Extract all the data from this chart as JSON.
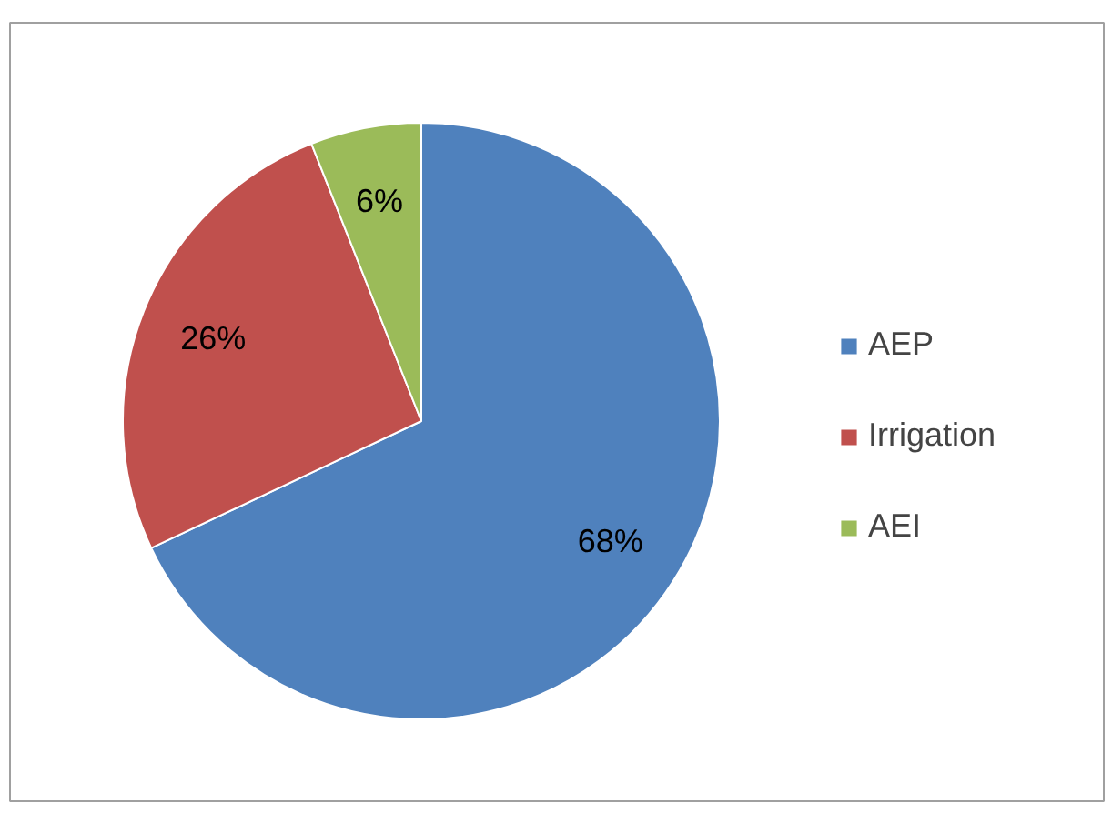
{
  "chart_data": {
    "type": "pie",
    "categories": [
      "AEP",
      "Irrigation",
      "AEI"
    ],
    "values": [
      68,
      26,
      6
    ],
    "value_labels": [
      "68%",
      "26%",
      "6%"
    ],
    "colors": [
      "#4f81bd",
      "#c0504d",
      "#9bbb59"
    ],
    "legend": "right"
  }
}
